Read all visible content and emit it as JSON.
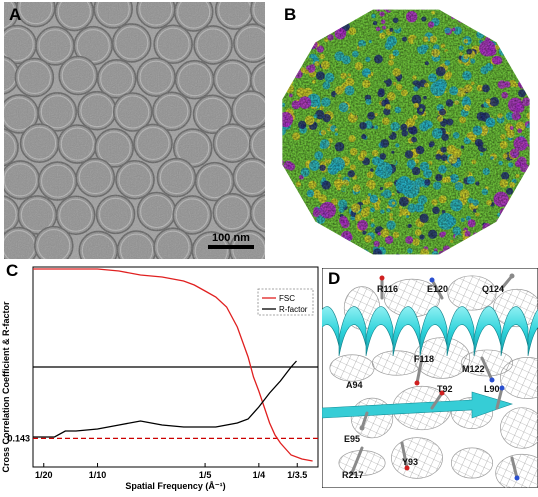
{
  "panels": {
    "a": {
      "letter": "A",
      "scale_bar_label": "100 nm"
    },
    "b": {
      "letter": "B"
    },
    "c": {
      "letter": "C"
    },
    "d": {
      "letter": "D"
    }
  },
  "chart_data": {
    "type": "line",
    "xlabel": "Spatial Frequency (Å⁻¹)",
    "ylabel": "Cross Correlation Coefficient & R-factor",
    "x_tick_labels": [
      "1/20",
      "1/10",
      "1/5",
      "1/4",
      "1/3.5"
    ],
    "x_ticks": [
      0.05,
      0.1,
      0.2,
      0.25,
      0.2857
    ],
    "xlim": [
      0.04,
      0.305
    ],
    "ylim": [
      0,
      1
    ],
    "y_tick_labels": [
      "0.143"
    ],
    "legend": {
      "position": "top-right",
      "entries": [
        "FSC",
        "R-factor"
      ]
    },
    "reference_lines": [
      {
        "y": 0.5,
        "color": "#000000",
        "style": "solid"
      },
      {
        "y": 0.143,
        "color": "#cc0000",
        "style": "dashed"
      }
    ],
    "series": [
      {
        "name": "FSC",
        "color": "#e02020",
        "x": [
          0.04,
          0.06,
          0.08,
          0.1,
          0.12,
          0.14,
          0.16,
          0.18,
          0.19,
          0.2,
          0.21,
          0.22,
          0.23,
          0.24,
          0.245,
          0.25,
          0.255,
          0.26,
          0.265,
          0.27,
          0.275,
          0.28,
          0.29,
          0.3
        ],
        "y": [
          0.99,
          0.99,
          0.99,
          0.99,
          0.98,
          0.96,
          0.95,
          0.93,
          0.91,
          0.88,
          0.85,
          0.8,
          0.7,
          0.55,
          0.45,
          0.38,
          0.3,
          0.22,
          0.16,
          0.12,
          0.09,
          0.06,
          0.04,
          0.03
        ]
      },
      {
        "name": "R-factor",
        "color": "#000000",
        "x": [
          0.04,
          0.06,
          0.07,
          0.08,
          0.1,
          0.12,
          0.14,
          0.16,
          0.18,
          0.2,
          0.21,
          0.22,
          0.23,
          0.24,
          0.25,
          0.26,
          0.27,
          0.28,
          0.285
        ],
        "y": [
          0.15,
          0.15,
          0.18,
          0.18,
          0.19,
          0.21,
          0.23,
          0.21,
          0.2,
          0.2,
          0.2,
          0.21,
          0.22,
          0.24,
          0.3,
          0.37,
          0.43,
          0.5,
          0.53
        ]
      }
    ]
  },
  "residue_labels": [
    "R116",
    "E120",
    "Q124",
    "F118",
    "M122",
    "A94",
    "T92",
    "L90",
    "E95",
    "Y93",
    "R217"
  ],
  "colors": {
    "capsid_green": "#6dc23a",
    "capsid_cyan": "#27b3c8",
    "capsid_yellow": "#d8cf2a",
    "capsid_magenta": "#b02dcc",
    "capsid_navy": "#23307a",
    "helix_cyan": "#2fd3db",
    "micrograph_gray": "#9a9a9a"
  }
}
